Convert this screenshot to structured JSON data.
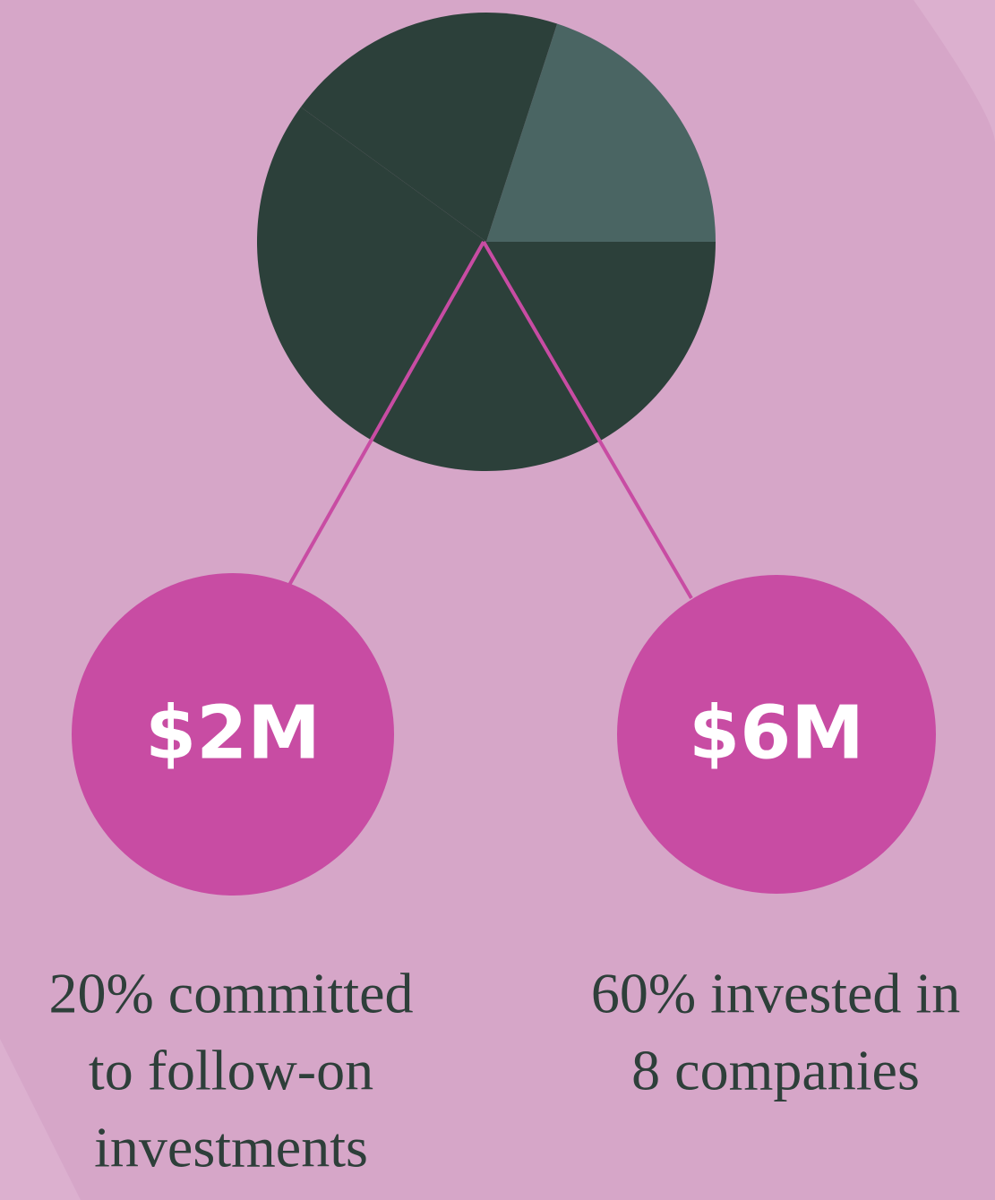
{
  "chart_data": {
    "type": "pie",
    "values": [
      20,
      60,
      20
    ],
    "colors": [
      "#4a6563",
      "#2c403a",
      "#2c403a"
    ],
    "start_angle": -72,
    "callouts": [
      {
        "amount": "$2M",
        "lines": [
          "20% committed",
          "to follow-on",
          "investments"
        ],
        "color": "#c84ca3"
      },
      {
        "amount": "$6M",
        "lines": [
          "60% invested in",
          "8 companies"
        ],
        "color": "#c84ca3"
      }
    ]
  }
}
